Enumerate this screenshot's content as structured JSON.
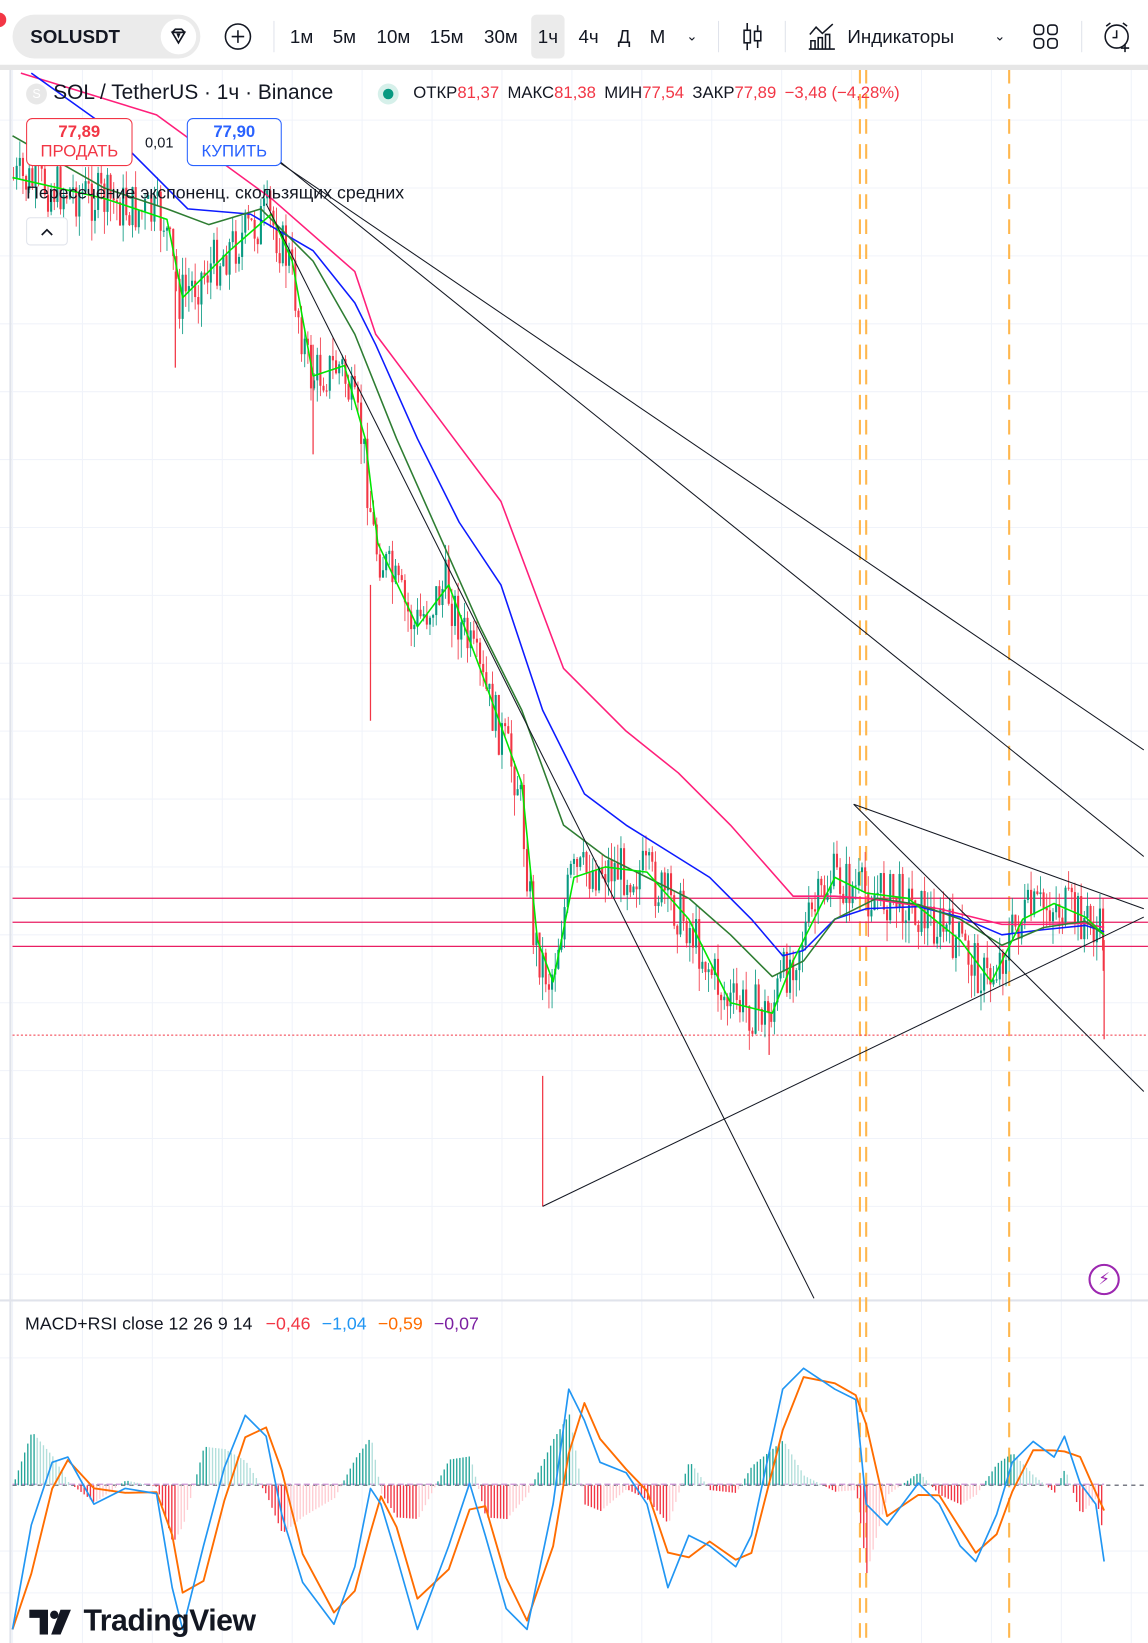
{
  "toolbar": {
    "symbol": "SOLUSDT",
    "intervals": [
      "1м",
      "5м",
      "10м",
      "15м",
      "30м",
      "1ч",
      "4ч",
      "Д",
      "М"
    ],
    "selected_interval": "1ч",
    "indicators_label": "Индикаторы"
  },
  "legend": {
    "symbol_letter": "S",
    "title": "SOL / TetherUS · 1ч · Binance",
    "open_label": "ОТКР",
    "open": "81,37",
    "high_label": "МАКС",
    "high": "81,38",
    "low_label": "МИН",
    "low": "77,54",
    "close_label": "ЗАКР",
    "close": "77,89",
    "change": "−3,48 (−4,28%)"
  },
  "trade": {
    "sell_price": "77,89",
    "sell_label": "ПРОДАТЬ",
    "spread": "0,01",
    "buy_price": "77,90",
    "buy_label": "КУПИТЬ"
  },
  "indicator": {
    "name": "Пересечение экспоненц. скользящих средних"
  },
  "macd": {
    "label": "MACD+RSI close 12 26 9 14",
    "values": [
      "−0,46",
      "−1,04",
      "−0,59",
      "−0,07"
    ],
    "value_colors": [
      "#f23645",
      "#2196f3",
      "#ff6d00",
      "#7b1fa2"
    ]
  },
  "logo": "TradingView",
  "colors": {
    "up": "#089981",
    "down": "#f23645",
    "ema_fast": "#00e600",
    "ema_mid": "#2e7d32",
    "ema_slow": "#0d1bff",
    "ema_long": "#ff1f7a",
    "level_line": "#e91e63",
    "session_line": "#ffb74d",
    "macd_line": "#2196f3",
    "signal_line": "#ff6d00"
  }
}
